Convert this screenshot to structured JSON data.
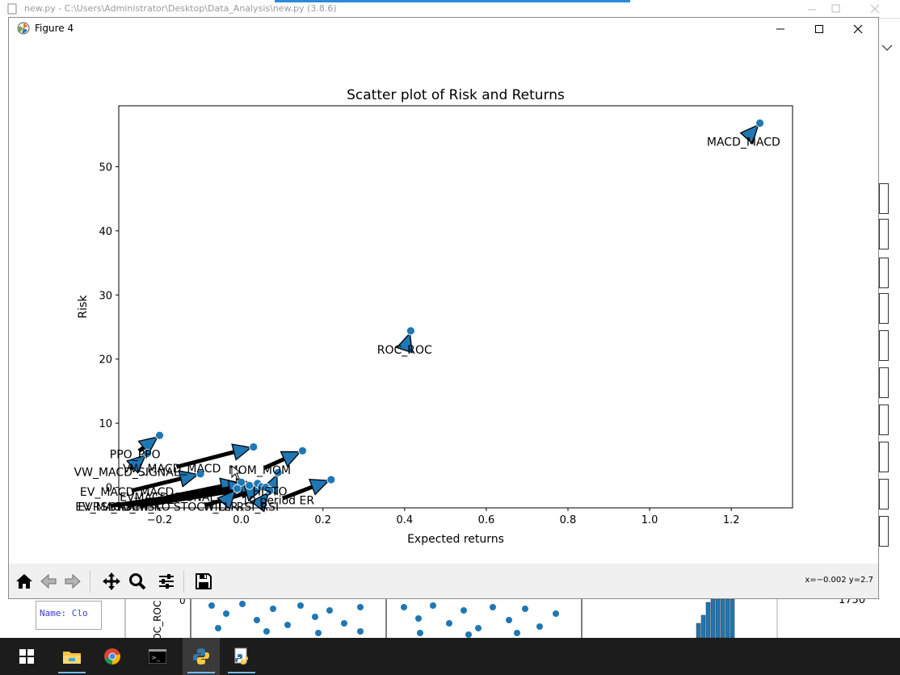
{
  "background": {
    "editor_title": "new.py - C:\\Users\\Administrator\\Desktop\\Data_Analysis\\new.py (3.8.6)",
    "console_text": "Name: Clo",
    "right_value": "1750",
    "axis_fragment": "ROC_ROC"
  },
  "window": {
    "title": "Figure 4",
    "icons": [
      "matplotlib-icon",
      "minimize-icon",
      "maximize-icon",
      "close-icon"
    ]
  },
  "toolbar": {
    "buttons": [
      "home-icon",
      "back-icon",
      "forward-icon",
      "pan-icon",
      "zoom-icon",
      "configure-subplots-icon",
      "save-icon"
    ],
    "coords": "x=−0.002 y=2.7"
  },
  "chart_data": {
    "type": "scatter",
    "title": "Scatter plot of Risk and Returns",
    "xlabel": "Expected returns",
    "ylabel": "Risk",
    "xlim": [
      -0.3,
      1.35
    ],
    "ylim": [
      -3.2,
      59.5
    ],
    "xticks": [
      -0.2,
      0.0,
      0.2,
      0.4,
      0.6,
      0.8,
      1.0,
      1.2
    ],
    "xtick_labels": [
      "−0.2",
      "0.0",
      "0.2",
      "0.4",
      "0.6",
      "0.8",
      "1.0",
      "1.2"
    ],
    "yticks": [
      0,
      10,
      20,
      30,
      40,
      50
    ],
    "ytick_labels": [
      "0",
      "10",
      "20",
      "30",
      "40",
      "50"
    ],
    "grid": false,
    "marker_color": "#1f77b4",
    "points": [
      {
        "label": "MACD_MACD",
        "x": 1.27,
        "y": 56.8,
        "tx": 1.23,
        "ty": 53.9
      },
      {
        "label": "ROC_ROC",
        "x": 0.415,
        "y": 24.4,
        "tx": 0.4,
        "ty": 21.5
      },
      {
        "label": "PPO_PPO",
        "x": -0.2,
        "y": 8.1,
        "tx": -0.26,
        "ty": 5.2
      },
      {
        "label": "VW_MACD_SIGNAL",
        "x": -0.23,
        "y": 5.3,
        "tx": -0.28,
        "ty": 2.4
      },
      {
        "label": "VW_MACD_MACD",
        "x": 0.03,
        "y": 6.3,
        "tx": -0.17,
        "ty": 3.0
      },
      {
        "label": "MOM_MOM",
        "x": 0.15,
        "y": 5.7,
        "tx": 0.045,
        "ty": 2.7
      },
      {
        "label": "10 period ER",
        "x": 0.22,
        "y": 1.2,
        "tx": 0.09,
        "ty": -2.0
      },
      {
        "label": "EV_MACD_MACD",
        "x": -0.1,
        "y": 2.1,
        "tx": -0.28,
        "ty": -0.7
      },
      {
        "label": "HISTO",
        "x": 0.09,
        "y": 2.3,
        "tx": 0.07,
        "ty": -0.6
      },
      {
        "label": "EVMACD_SIGNAL",
        "x": 0.0,
        "y": 0.8,
        "tx": -0.18,
        "ty": -1.5
      },
      {
        "label": "EV_MACD_HISTO",
        "x": 0.04,
        "y": 0.6,
        "tx": -0.29,
        "ty": -3.0
      },
      {
        "label": "EVRSI_RSI",
        "x": 0.02,
        "y": 0.3,
        "tx": -0.33,
        "ty": -3.0
      },
      {
        "label": "STOCH_K",
        "x": 0.05,
        "y": 0.1,
        "tx": -0.26,
        "ty": -3.0
      },
      {
        "label": "STOCH_D",
        "x": 0.06,
        "y": 0.0,
        "tx": -0.1,
        "ty": -3.0
      },
      {
        "label": "WILLR",
        "x": -0.01,
        "y": -0.2,
        "tx": -0.05,
        "ty": -3.0
      },
      {
        "label": "RSI_RSI",
        "x": 0.07,
        "y": -0.5,
        "tx": 0.04,
        "ty": -3.0
      }
    ]
  }
}
